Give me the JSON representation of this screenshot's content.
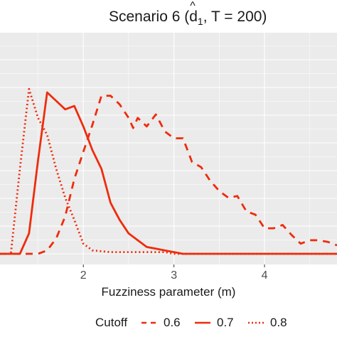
{
  "chart_data": {
    "type": "line",
    "title": {
      "prefix": "Scenario 6 (",
      "symbol": "d",
      "subscript": "1",
      "suffix": ", T = 200)"
    },
    "xlabel": "Fuzziness parameter (m)",
    "ylabel": "",
    "xlim": [
      1.08,
      4.8
    ],
    "ylim": [
      0,
      1.0
    ],
    "x_ticks": [
      2,
      3,
      4
    ],
    "x_tick_labels": [
      "2",
      "3",
      "4"
    ],
    "grid": true,
    "background": "#ebebeb",
    "line_color": "#ee2c0c",
    "legend": {
      "title": "Cutoff",
      "placement": "bottom",
      "entries": [
        "0.6",
        "0.7",
        "0.8"
      ]
    },
    "series": [
      {
        "name": "0.6",
        "linestyle": "dashed",
        "x": [
          1.08,
          1.3,
          1.5,
          1.6,
          1.7,
          1.8,
          1.9,
          2.0,
          2.1,
          2.2,
          2.3,
          2.4,
          2.5,
          2.55,
          2.6,
          2.7,
          2.8,
          2.9,
          3.0,
          3.1,
          3.2,
          3.3,
          3.4,
          3.5,
          3.6,
          3.7,
          3.8,
          3.9,
          4.0,
          4.1,
          4.2,
          4.3,
          4.4,
          4.5,
          4.6,
          4.7,
          4.8
        ],
        "y": [
          0.0,
          0.0,
          0.0,
          0.02,
          0.09,
          0.22,
          0.44,
          0.6,
          0.76,
          0.93,
          0.93,
          0.88,
          0.8,
          0.74,
          0.8,
          0.75,
          0.82,
          0.72,
          0.68,
          0.68,
          0.54,
          0.51,
          0.43,
          0.37,
          0.33,
          0.34,
          0.25,
          0.23,
          0.15,
          0.15,
          0.17,
          0.11,
          0.06,
          0.08,
          0.08,
          0.07,
          0.05
        ]
      },
      {
        "name": "0.7",
        "linestyle": "solid",
        "x": [
          1.08,
          1.3,
          1.4,
          1.5,
          1.6,
          1.7,
          1.8,
          1.9,
          2.0,
          2.1,
          2.2,
          2.3,
          2.4,
          2.5,
          2.6,
          2.7,
          2.8,
          2.9,
          3.0,
          3.1,
          3.5,
          4.0,
          4.8
        ],
        "y": [
          0.0,
          0.0,
          0.12,
          0.55,
          0.95,
          0.9,
          0.85,
          0.87,
          0.75,
          0.61,
          0.5,
          0.3,
          0.2,
          0.12,
          0.08,
          0.04,
          0.03,
          0.02,
          0.01,
          0.0,
          0.0,
          0.0,
          0.0
        ]
      },
      {
        "name": "0.8",
        "linestyle": "dotted",
        "x": [
          1.08,
          1.2,
          1.3,
          1.4,
          1.5,
          1.6,
          1.7,
          1.8,
          1.9,
          2.0,
          2.1,
          2.3,
          2.6,
          2.9,
          3.0,
          3.5,
          4.0,
          4.8
        ],
        "y": [
          0.0,
          0.0,
          0.5,
          0.97,
          0.8,
          0.7,
          0.5,
          0.33,
          0.2,
          0.06,
          0.02,
          0.01,
          0.01,
          0.01,
          0.0,
          0.0,
          0.0,
          0.0
        ]
      }
    ]
  }
}
